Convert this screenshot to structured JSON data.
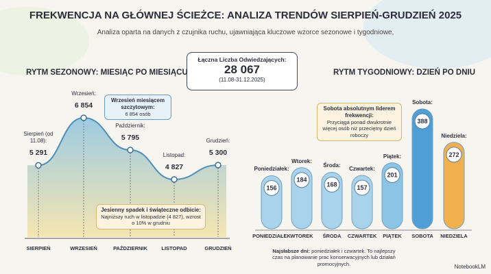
{
  "header": {
    "title": "FREKWENCJA NA GŁÓWNEJ ŚCIEŻCE: ANALIZA TRENDÓW SIERPIEŃ-GRUDZIEŃ 2025",
    "subtitle": "Analiza oparta na danych z czujnika ruchu, ujawniająca kluczowe wzorce sezonowe i tygodniowe,"
  },
  "total": {
    "label": "Łączna Liczba Odwiedzających:",
    "value": "28 067",
    "period": "(11.08-31.12.2025)"
  },
  "chart_data": [
    {
      "type": "area",
      "title": "RYTM SEZONOWY: MIESIĄC PO MIESIĄCU",
      "categories": [
        "SIERPIEŃ",
        "WRZESIEŃ",
        "PAŹDZIERNIK",
        "LISTOPAD",
        "GRUDZIEŃ"
      ],
      "point_labels": [
        "Sierpień (od 11.08):",
        "Wrzesień:",
        "Październik:",
        "Listopad:",
        "Grudzień:"
      ],
      "values": [
        5291,
        6854,
        5795,
        4827,
        5300
      ],
      "value_labels": [
        "5 291",
        "6 854",
        "5 795",
        "4 827",
        "5 300"
      ],
      "color": "#7fb8d8",
      "annotations": [
        {
          "title": "Wrzesień miesiącem szczytowym:",
          "text": "6 854 osób"
        },
        {
          "title": "Jesienny spadek i świąteczne odbicie:",
          "text": "Najniższy ruch w listopadzie (4 827), wzrost o 10% w grudniu"
        }
      ]
    },
    {
      "type": "bar",
      "title": "RYTM TYGODNIOWY: DZIEŃ PO DNIU",
      "categories": [
        "PONIEDZIAŁEK",
        "WTOREK",
        "ŚRODA",
        "CZWARTEK",
        "PIĄTEK",
        "SOBOTA",
        "NIEDZIELA"
      ],
      "point_labels": [
        "Poniedziałek:",
        "Wtorek:",
        "Środa:",
        "Czwartek:",
        "Piątek:",
        "Sobota:",
        "Niedziela:"
      ],
      "values": [
        156,
        184,
        168,
        157,
        201,
        388,
        272
      ],
      "colors": [
        "#a9d3ea",
        "#a9d3ea",
        "#a9d3ea",
        "#a9d3ea",
        "#8cc4e6",
        "#4f9fd6",
        "#f2b04f"
      ],
      "annotations": [
        {
          "title": "Sobota absolutnym liderem frekwencji:",
          "text": "Przyciąga ponad dwukrotnie więcej osób niż przeciętny dzień roboczy"
        }
      ]
    }
  ],
  "footer": {
    "title": "Najsłabsze dni:",
    "text": "poniedziałek i czwartek. To najlepszy czas na planowanie prac konserwacyjnych lub działań promocyjnych.",
    "brand": "NotebookLM"
  }
}
